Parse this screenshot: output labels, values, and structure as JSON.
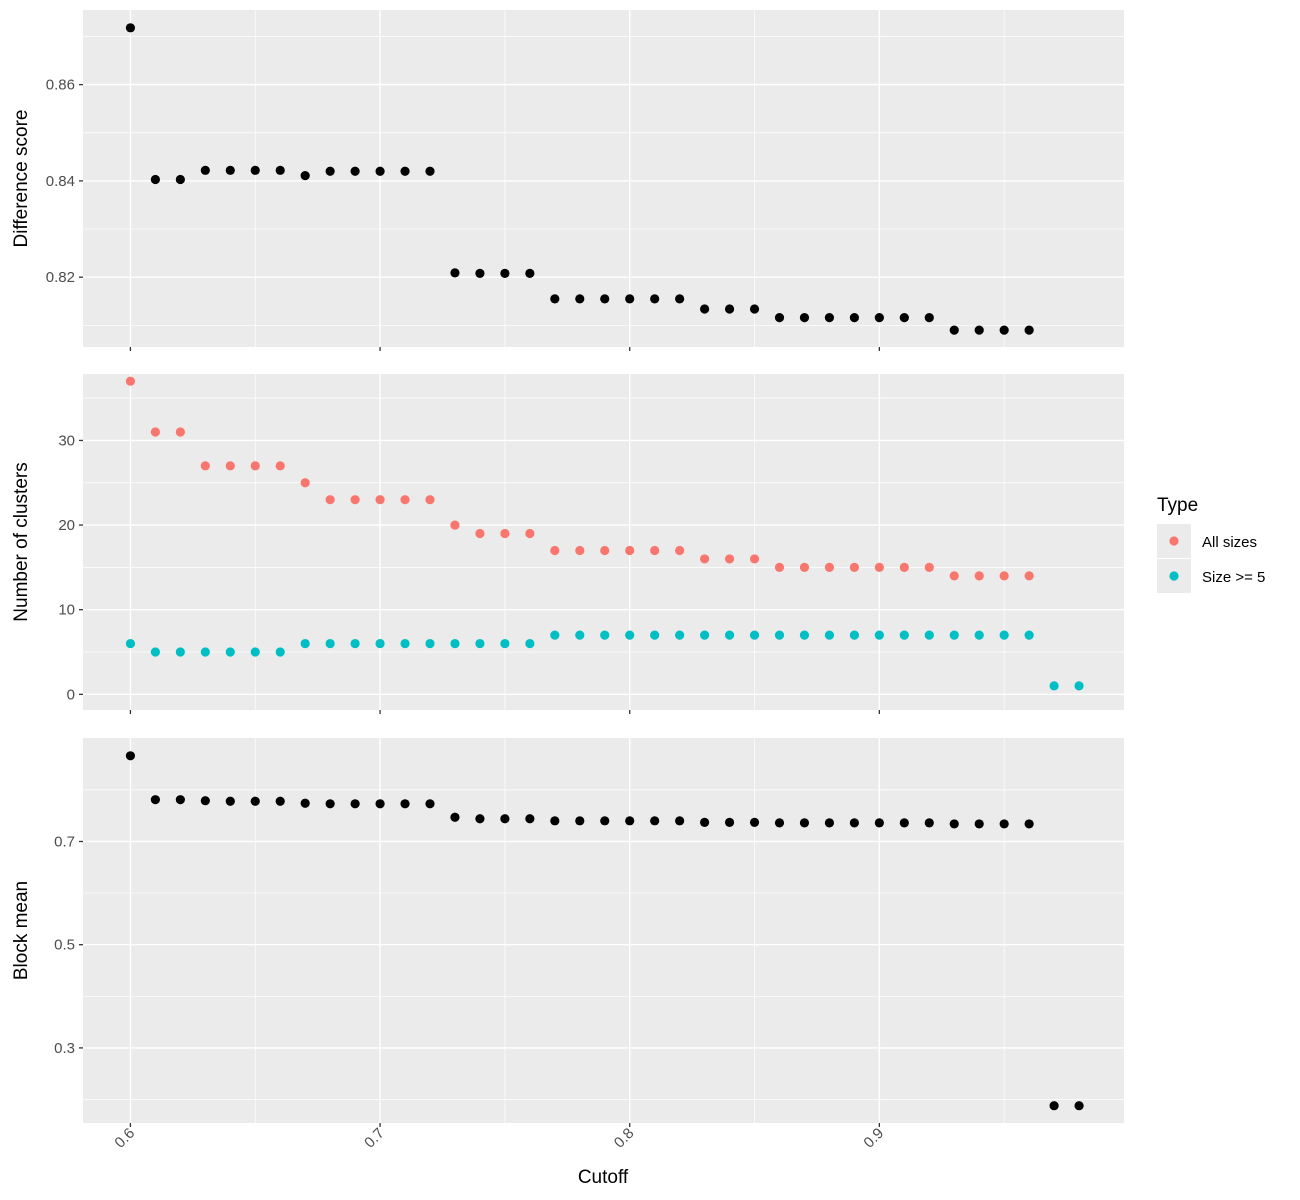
{
  "chart_data": {
    "type": "scatter",
    "xlabel": "Cutoff",
    "x_ticks": [
      0.6,
      0.7,
      0.8,
      0.9
    ],
    "x_tick_labels": [
      "0.6",
      "0.7",
      "0.8",
      "0.9"
    ],
    "xlim": [
      0.581,
      0.998
    ],
    "legend": {
      "title": "Type",
      "placement": "right",
      "entries": [
        {
          "label": "All sizes",
          "color": "#F8766D"
        },
        {
          "label": "Size >= 5",
          "color": "#00BFC4"
        }
      ]
    },
    "panels": [
      {
        "ylabel": "Difference score",
        "ylim": [
          0.8055,
          0.8755
        ],
        "y_ticks": [
          0.82,
          0.84,
          0.86
        ],
        "y_tick_labels": [
          "0.82",
          "0.84",
          "0.86"
        ],
        "series": [
          {
            "color": "#000000",
            "x": [
              0.6,
              0.61,
              0.62,
              0.63,
              0.64,
              0.65,
              0.66,
              0.67,
              0.68,
              0.69,
              0.7,
              0.71,
              0.72,
              0.73,
              0.74,
              0.75,
              0.76,
              0.77,
              0.78,
              0.79,
              0.8,
              0.81,
              0.82,
              0.83,
              0.84,
              0.85,
              0.86,
              0.87,
              0.88,
              0.89,
              0.9,
              0.91,
              0.92,
              0.93,
              0.94,
              0.95,
              0.96
            ],
            "y": [
              0.8718,
              0.8403,
              0.8403,
              0.8422,
              0.8422,
              0.8422,
              0.8422,
              0.8411,
              0.842,
              0.842,
              0.842,
              0.842,
              0.842,
              0.8209,
              0.8208,
              0.8208,
              0.8208,
              0.8155,
              0.8155,
              0.8155,
              0.8155,
              0.8155,
              0.8155,
              0.8134,
              0.8134,
              0.8134,
              0.8116,
              0.8116,
              0.8116,
              0.8116,
              0.8116,
              0.8116,
              0.8116,
              0.809,
              0.809,
              0.809,
              0.809
            ]
          }
        ]
      },
      {
        "ylabel": "Number of clusters",
        "ylim": [
          -1.85,
          37.85
        ],
        "y_ticks": [
          0,
          10,
          20,
          30
        ],
        "y_tick_labels": [
          "0",
          "10",
          "20",
          "30"
        ],
        "series": [
          {
            "name": "All sizes",
            "color": "#F8766D",
            "x": [
              0.6,
              0.61,
              0.62,
              0.63,
              0.64,
              0.65,
              0.66,
              0.67,
              0.68,
              0.69,
              0.7,
              0.71,
              0.72,
              0.73,
              0.74,
              0.75,
              0.76,
              0.77,
              0.78,
              0.79,
              0.8,
              0.81,
              0.82,
              0.83,
              0.84,
              0.85,
              0.86,
              0.87,
              0.88,
              0.89,
              0.9,
              0.91,
              0.92,
              0.93,
              0.94,
              0.95,
              0.96
            ],
            "y": [
              37,
              31,
              31,
              27,
              27,
              27,
              27,
              25,
              23,
              23,
              23,
              23,
              23,
              20,
              19,
              19,
              19,
              17,
              17,
              17,
              17,
              17,
              17,
              16,
              16,
              16,
              15,
              15,
              15,
              15,
              15,
              15,
              15,
              14,
              14,
              14,
              14
            ]
          },
          {
            "name": "Size >= 5",
            "color": "#00BFC4",
            "x": [
              0.6,
              0.61,
              0.62,
              0.63,
              0.64,
              0.65,
              0.66,
              0.67,
              0.68,
              0.69,
              0.7,
              0.71,
              0.72,
              0.73,
              0.74,
              0.75,
              0.76,
              0.77,
              0.78,
              0.79,
              0.8,
              0.81,
              0.82,
              0.83,
              0.84,
              0.85,
              0.86,
              0.87,
              0.88,
              0.89,
              0.9,
              0.91,
              0.92,
              0.93,
              0.94,
              0.95,
              0.96,
              0.97,
              0.98
            ],
            "y": [
              6,
              5,
              5,
              5,
              5,
              5,
              5,
              6,
              6,
              6,
              6,
              6,
              6,
              6,
              6,
              6,
              6,
              7,
              7,
              7,
              7,
              7,
              7,
              7,
              7,
              7,
              7,
              7,
              7,
              7,
              7,
              7,
              7,
              7,
              7,
              7,
              7,
              1,
              1
            ]
          }
        ]
      },
      {
        "ylabel": "Block mean",
        "ylim": [
          0.1545,
          0.9005
        ],
        "y_ticks": [
          0.3,
          0.5,
          0.7
        ],
        "y_tick_labels": [
          "0.3",
          "0.5",
          "0.7"
        ],
        "series": [
          {
            "color": "#000000",
            "x": [
              0.6,
              0.61,
              0.62,
              0.63,
              0.64,
              0.65,
              0.66,
              0.67,
              0.68,
              0.69,
              0.7,
              0.71,
              0.72,
              0.73,
              0.74,
              0.75,
              0.76,
              0.77,
              0.78,
              0.79,
              0.8,
              0.81,
              0.82,
              0.83,
              0.84,
              0.85,
              0.86,
              0.87,
              0.88,
              0.89,
              0.9,
              0.91,
              0.92,
              0.93,
              0.94,
              0.95,
              0.96,
              0.97,
              0.98
            ],
            "y": [
              0.866,
              0.781,
              0.781,
              0.779,
              0.778,
              0.778,
              0.778,
              0.774,
              0.773,
              0.773,
              0.773,
              0.773,
              0.773,
              0.747,
              0.744,
              0.744,
              0.744,
              0.74,
              0.74,
              0.74,
              0.74,
              0.74,
              0.74,
              0.737,
              0.737,
              0.737,
              0.736,
              0.736,
              0.736,
              0.736,
              0.736,
              0.736,
              0.736,
              0.734,
              0.734,
              0.734,
              0.734,
              0.188,
              0.188
            ]
          }
        ]
      }
    ]
  }
}
